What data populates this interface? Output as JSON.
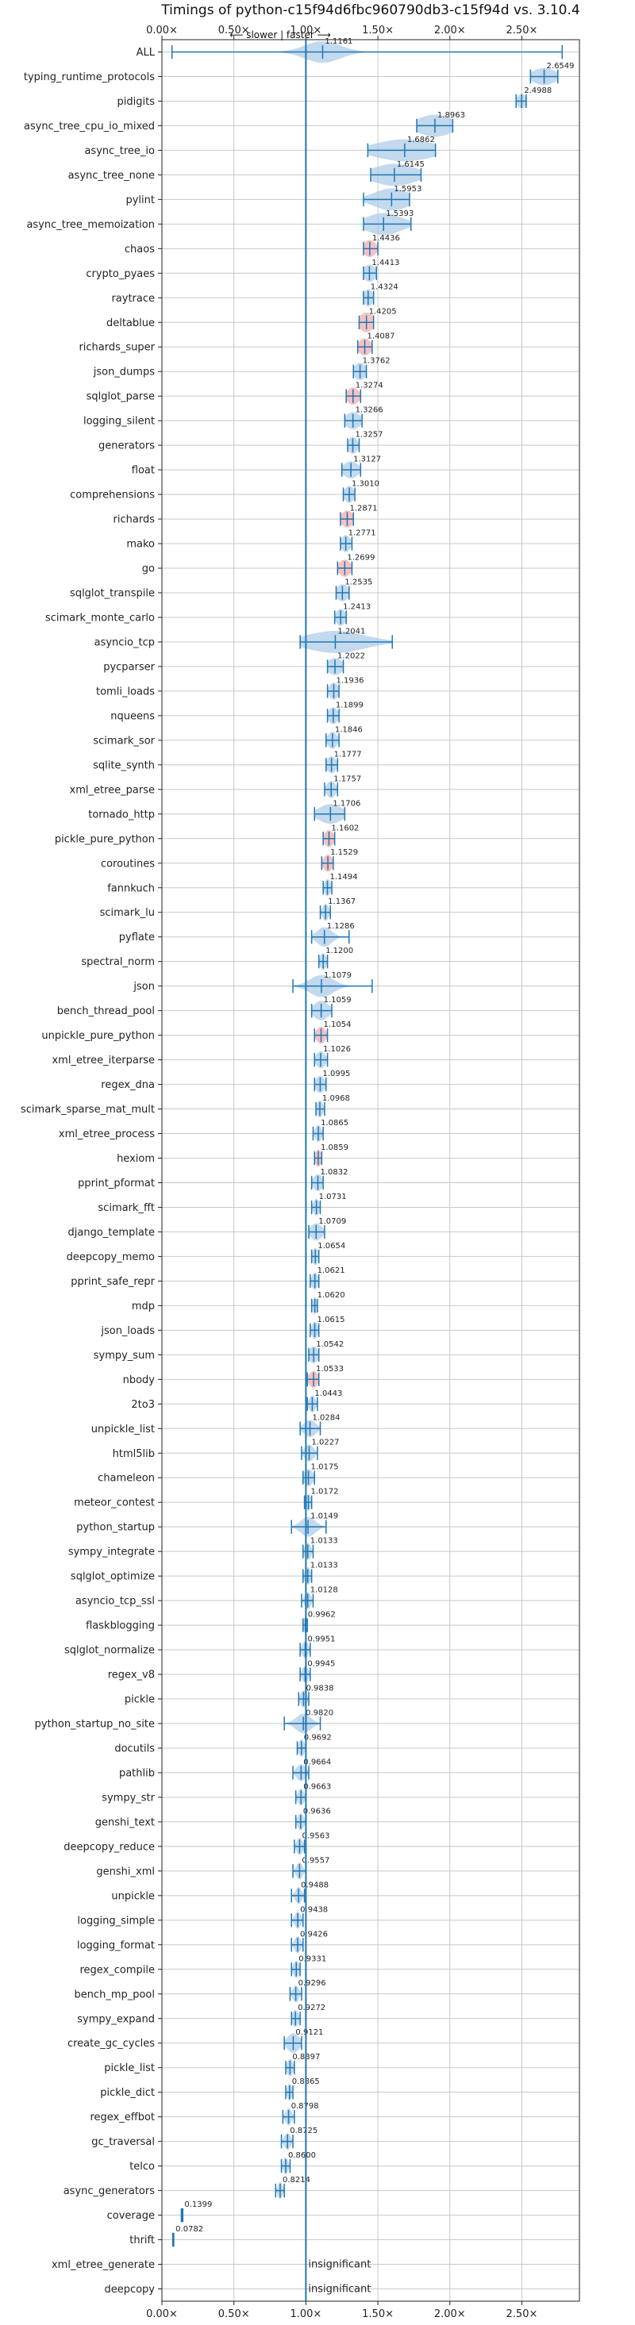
{
  "chart_data": {
    "type": "violin",
    "title": "Timings of python-c15f94d6fbc960790db3-c15f94d vs. 3.10.4",
    "direction_label": "⟵ slower | faster ⟶",
    "insignificant_label": "insignificant",
    "xlim": [
      0,
      2.9
    ],
    "x_ticks": [
      0,
      0.5,
      1.0,
      1.5,
      2.0,
      2.5
    ],
    "x_tick_labels": [
      "0.00×",
      "0.50×",
      "1.00×",
      "1.50×",
      "2.00×",
      "2.50×"
    ],
    "grid": true,
    "colors": {
      "violin": "#a9c9e6",
      "line": "#1f77b4",
      "highlight": "#f4a6a6",
      "grid": "#c8c8c8"
    },
    "benchmarks": [
      {
        "name": "ALL",
        "value": 1.1161,
        "label": "1.1161",
        "lo": 0.07,
        "hi": 2.78,
        "spread": 0.12,
        "height": 0.45
      },
      {
        "name": "typing_runtime_protocols",
        "value": 2.6549,
        "label": "2.6549",
        "lo": 2.56,
        "hi": 2.75,
        "spread": 0.08,
        "height": 0.35
      },
      {
        "name": "pidigits",
        "value": 2.4988,
        "label": "2.4988",
        "lo": 2.46,
        "hi": 2.53,
        "spread": 0.03,
        "height": 0.3
      },
      {
        "name": "async_tree_cpu_io_mixed",
        "value": 1.8963,
        "label": "1.8963",
        "lo": 1.77,
        "hi": 2.02,
        "spread": 0.12,
        "height": 0.45
      },
      {
        "name": "async_tree_io",
        "value": 1.6862,
        "label": "1.6862",
        "lo": 1.43,
        "hi": 1.9,
        "spread": 0.2,
        "height": 0.45
      },
      {
        "name": "async_tree_none",
        "value": 1.6145,
        "label": "1.6145",
        "lo": 1.45,
        "hi": 1.8,
        "spread": 0.15,
        "height": 0.45
      },
      {
        "name": "pylint",
        "value": 1.5953,
        "label": "1.5953",
        "lo": 1.4,
        "hi": 1.72,
        "spread": 0.12,
        "height": 0.45
      },
      {
        "name": "async_tree_memoization",
        "value": 1.5393,
        "label": "1.5393",
        "lo": 1.4,
        "hi": 1.73,
        "spread": 0.12,
        "height": 0.45
      },
      {
        "name": "chaos",
        "value": 1.4436,
        "label": "1.4436",
        "lo": 1.4,
        "hi": 1.5,
        "spread": 0.04,
        "height": 0.35,
        "highlight": true
      },
      {
        "name": "crypto_pyaes",
        "value": 1.4413,
        "label": "1.4413",
        "lo": 1.4,
        "hi": 1.49,
        "spread": 0.04,
        "height": 0.35
      },
      {
        "name": "raytrace",
        "value": 1.4324,
        "label": "1.4324",
        "lo": 1.4,
        "hi": 1.47,
        "spread": 0.03,
        "height": 0.35
      },
      {
        "name": "deltablue",
        "value": 1.4205,
        "label": "1.4205",
        "lo": 1.37,
        "hi": 1.47,
        "spread": 0.05,
        "height": 0.4,
        "highlight": true
      },
      {
        "name": "richards_super",
        "value": 1.4087,
        "label": "1.4087",
        "lo": 1.36,
        "hi": 1.46,
        "spread": 0.04,
        "height": 0.35,
        "highlight": true
      },
      {
        "name": "json_dumps",
        "value": 1.3762,
        "label": "1.3762",
        "lo": 1.33,
        "hi": 1.42,
        "spread": 0.04,
        "height": 0.35
      },
      {
        "name": "sqlglot_parse",
        "value": 1.3274,
        "label": "1.3274",
        "lo": 1.28,
        "hi": 1.38,
        "spread": 0.04,
        "height": 0.35,
        "highlight": true
      },
      {
        "name": "logging_silent",
        "value": 1.3266,
        "label": "1.3266",
        "lo": 1.27,
        "hi": 1.39,
        "spread": 0.05,
        "height": 0.35
      },
      {
        "name": "generators",
        "value": 1.3257,
        "label": "1.3257",
        "lo": 1.29,
        "hi": 1.37,
        "spread": 0.03,
        "height": 0.35
      },
      {
        "name": "float",
        "value": 1.3127,
        "label": "1.3127",
        "lo": 1.25,
        "hi": 1.38,
        "spread": 0.05,
        "height": 0.35
      },
      {
        "name": "comprehensions",
        "value": 1.301,
        "label": "1.3010",
        "lo": 1.26,
        "hi": 1.34,
        "spread": 0.03,
        "height": 0.35
      },
      {
        "name": "richards",
        "value": 1.2871,
        "label": "1.2871",
        "lo": 1.24,
        "hi": 1.33,
        "spread": 0.04,
        "height": 0.35,
        "highlight": true
      },
      {
        "name": "mako",
        "value": 1.2771,
        "label": "1.2771",
        "lo": 1.24,
        "hi": 1.32,
        "spread": 0.03,
        "height": 0.35
      },
      {
        "name": "go",
        "value": 1.2699,
        "label": "1.2699",
        "lo": 1.22,
        "hi": 1.32,
        "spread": 0.04,
        "height": 0.35,
        "highlight": true
      },
      {
        "name": "sqlglot_transpile",
        "value": 1.2535,
        "label": "1.2535",
        "lo": 1.21,
        "hi": 1.3,
        "spread": 0.04,
        "height": 0.35
      },
      {
        "name": "scimark_monte_carlo",
        "value": 1.2413,
        "label": "1.2413",
        "lo": 1.2,
        "hi": 1.28,
        "spread": 0.03,
        "height": 0.35
      },
      {
        "name": "asyncio_tcp",
        "value": 1.2041,
        "label": "1.2041",
        "lo": 0.96,
        "hi": 1.6,
        "spread": 0.2,
        "height": 0.45
      },
      {
        "name": "pycparser",
        "value": 1.2022,
        "label": "1.2022",
        "lo": 1.15,
        "hi": 1.26,
        "spread": 0.05,
        "height": 0.35
      },
      {
        "name": "tomli_loads",
        "value": 1.1936,
        "label": "1.1936",
        "lo": 1.15,
        "hi": 1.23,
        "spread": 0.03,
        "height": 0.35
      },
      {
        "name": "nqueens",
        "value": 1.1899,
        "label": "1.1899",
        "lo": 1.15,
        "hi": 1.23,
        "spread": 0.03,
        "height": 0.35
      },
      {
        "name": "scimark_sor",
        "value": 1.1846,
        "label": "1.1846",
        "lo": 1.14,
        "hi": 1.23,
        "spread": 0.03,
        "height": 0.35
      },
      {
        "name": "sqlite_synth",
        "value": 1.1777,
        "label": "1.1777",
        "lo": 1.14,
        "hi": 1.22,
        "spread": 0.03,
        "height": 0.35
      },
      {
        "name": "xml_etree_parse",
        "value": 1.1757,
        "label": "1.1757",
        "lo": 1.13,
        "hi": 1.22,
        "spread": 0.03,
        "height": 0.35
      },
      {
        "name": "tornado_http",
        "value": 1.1706,
        "label": "1.1706",
        "lo": 1.06,
        "hi": 1.27,
        "spread": 0.08,
        "height": 0.4
      },
      {
        "name": "pickle_pure_python",
        "value": 1.1602,
        "label": "1.1602",
        "lo": 1.12,
        "hi": 1.2,
        "spread": 0.03,
        "height": 0.35,
        "highlight": true
      },
      {
        "name": "coroutines",
        "value": 1.1529,
        "label": "1.1529",
        "lo": 1.11,
        "hi": 1.19,
        "spread": 0.03,
        "height": 0.35,
        "highlight": true
      },
      {
        "name": "fannkuch",
        "value": 1.1494,
        "label": "1.1494",
        "lo": 1.12,
        "hi": 1.18,
        "spread": 0.02,
        "height": 0.35
      },
      {
        "name": "scimark_lu",
        "value": 1.1367,
        "label": "1.1367",
        "lo": 1.1,
        "hi": 1.17,
        "spread": 0.02,
        "height": 0.35
      },
      {
        "name": "pyflate",
        "value": 1.1286,
        "label": "1.1286",
        "lo": 1.04,
        "hi": 1.3,
        "spread": 0.05,
        "height": 0.4
      },
      {
        "name": "spectral_norm",
        "value": 1.12,
        "label": "1.1200",
        "lo": 1.09,
        "hi": 1.15,
        "spread": 0.02,
        "height": 0.35
      },
      {
        "name": "json",
        "value": 1.1079,
        "label": "1.1079",
        "lo": 0.91,
        "hi": 1.46,
        "spread": 0.08,
        "height": 0.45
      },
      {
        "name": "bench_thread_pool",
        "value": 1.1059,
        "label": "1.1059",
        "lo": 1.04,
        "hi": 1.18,
        "spread": 0.05,
        "height": 0.4
      },
      {
        "name": "unpickle_pure_python",
        "value": 1.1054,
        "label": "1.1054",
        "lo": 1.06,
        "hi": 1.15,
        "spread": 0.03,
        "height": 0.35,
        "highlight": true
      },
      {
        "name": "xml_etree_iterparse",
        "value": 1.1026,
        "label": "1.1026",
        "lo": 1.06,
        "hi": 1.15,
        "spread": 0.03,
        "height": 0.35
      },
      {
        "name": "regex_dna",
        "value": 1.0995,
        "label": "1.0995",
        "lo": 1.06,
        "hi": 1.14,
        "spread": 0.03,
        "height": 0.35
      },
      {
        "name": "scimark_sparse_mat_mult",
        "value": 1.0968,
        "label": "1.0968",
        "lo": 1.07,
        "hi": 1.13,
        "spread": 0.02,
        "height": 0.35
      },
      {
        "name": "xml_etree_process",
        "value": 1.0865,
        "label": "1.0865",
        "lo": 1.05,
        "hi": 1.12,
        "spread": 0.02,
        "height": 0.35
      },
      {
        "name": "hexiom",
        "value": 1.0859,
        "label": "1.0859",
        "lo": 1.06,
        "hi": 1.11,
        "spread": 0.02,
        "height": 0.35,
        "highlight": true
      },
      {
        "name": "pprint_pformat",
        "value": 1.0832,
        "label": "1.0832",
        "lo": 1.04,
        "hi": 1.12,
        "spread": 0.03,
        "height": 0.35
      },
      {
        "name": "scimark_fft",
        "value": 1.0731,
        "label": "1.0731",
        "lo": 1.04,
        "hi": 1.1,
        "spread": 0.02,
        "height": 0.35
      },
      {
        "name": "django_template",
        "value": 1.0709,
        "label": "1.0709",
        "lo": 1.02,
        "hi": 1.13,
        "spread": 0.04,
        "height": 0.35
      },
      {
        "name": "deepcopy_memo",
        "value": 1.0654,
        "label": "1.0654",
        "lo": 1.04,
        "hi": 1.09,
        "spread": 0.02,
        "height": 0.35
      },
      {
        "name": "pprint_safe_repr",
        "value": 1.0621,
        "label": "1.0621",
        "lo": 1.03,
        "hi": 1.09,
        "spread": 0.02,
        "height": 0.35
      },
      {
        "name": "mdp",
        "value": 1.062,
        "label": "1.0620",
        "lo": 1.04,
        "hi": 1.08,
        "spread": 0.015,
        "height": 0.35
      },
      {
        "name": "json_loads",
        "value": 1.0615,
        "label": "1.0615",
        "lo": 1.03,
        "hi": 1.09,
        "spread": 0.02,
        "height": 0.35
      },
      {
        "name": "sympy_sum",
        "value": 1.0542,
        "label": "1.0542",
        "lo": 1.02,
        "hi": 1.09,
        "spread": 0.03,
        "height": 0.35
      },
      {
        "name": "nbody",
        "value": 1.0533,
        "label": "1.0533",
        "lo": 1.01,
        "hi": 1.09,
        "spread": 0.03,
        "height": 0.35,
        "highlight": true
      },
      {
        "name": "2to3",
        "value": 1.0443,
        "label": "1.0443",
        "lo": 1.01,
        "hi": 1.08,
        "spread": 0.02,
        "height": 0.35
      },
      {
        "name": "unpickle_list",
        "value": 1.0284,
        "label": "1.0284",
        "lo": 0.96,
        "hi": 1.1,
        "spread": 0.04,
        "height": 0.35
      },
      {
        "name": "html5lib",
        "value": 1.0227,
        "label": "1.0227",
        "lo": 0.97,
        "hi": 1.08,
        "spread": 0.03,
        "height": 0.35
      },
      {
        "name": "chameleon",
        "value": 1.0175,
        "label": "1.0175",
        "lo": 0.98,
        "hi": 1.06,
        "spread": 0.03,
        "height": 0.35
      },
      {
        "name": "meteor_contest",
        "value": 1.0172,
        "label": "1.0172",
        "lo": 0.99,
        "hi": 1.04,
        "spread": 0.015,
        "height": 0.35
      },
      {
        "name": "python_startup",
        "value": 1.0149,
        "label": "1.0149",
        "lo": 0.9,
        "hi": 1.14,
        "spread": 0.05,
        "height": 0.4
      },
      {
        "name": "sympy_integrate",
        "value": 1.0133,
        "label": "1.0133",
        "lo": 0.98,
        "hi": 1.05,
        "spread": 0.02,
        "height": 0.35
      },
      {
        "name": "sqlglot_optimize",
        "value": 1.0133,
        "label": "1.0133",
        "lo": 0.98,
        "hi": 1.04,
        "spread": 0.02,
        "height": 0.35
      },
      {
        "name": "asyncio_tcp_ssl",
        "value": 1.0128,
        "label": "1.0128",
        "lo": 0.97,
        "hi": 1.05,
        "spread": 0.02,
        "height": 0.35
      },
      {
        "name": "flaskblogging",
        "value": 0.9962,
        "label": "0.9962",
        "lo": 0.98,
        "hi": 1.01,
        "spread": 0.01,
        "height": 0.35
      },
      {
        "name": "sqlglot_normalize",
        "value": 0.9951,
        "label": "0.9951",
        "lo": 0.96,
        "hi": 1.03,
        "spread": 0.02,
        "height": 0.35
      },
      {
        "name": "regex_v8",
        "value": 0.9945,
        "label": "0.9945",
        "lo": 0.96,
        "hi": 1.03,
        "spread": 0.02,
        "height": 0.35
      },
      {
        "name": "pickle",
        "value": 0.9838,
        "label": "0.9838",
        "lo": 0.95,
        "hi": 1.02,
        "spread": 0.02,
        "height": 0.35
      },
      {
        "name": "python_startup_no_site",
        "value": 0.982,
        "label": "0.9820",
        "lo": 0.85,
        "hi": 1.1,
        "spread": 0.05,
        "height": 0.4
      },
      {
        "name": "docutils",
        "value": 0.9692,
        "label": "0.9692",
        "lo": 0.94,
        "hi": 1.0,
        "spread": 0.02,
        "height": 0.35
      },
      {
        "name": "pathlib",
        "value": 0.9664,
        "label": "0.9664",
        "lo": 0.91,
        "hi": 1.02,
        "spread": 0.03,
        "height": 0.35
      },
      {
        "name": "sympy_str",
        "value": 0.9663,
        "label": "0.9663",
        "lo": 0.93,
        "hi": 1.0,
        "spread": 0.02,
        "height": 0.35
      },
      {
        "name": "genshi_text",
        "value": 0.9636,
        "label": "0.9636",
        "lo": 0.93,
        "hi": 1.0,
        "spread": 0.02,
        "height": 0.35
      },
      {
        "name": "deepcopy_reduce",
        "value": 0.9563,
        "label": "0.9563",
        "lo": 0.92,
        "hi": 0.99,
        "spread": 0.02,
        "height": 0.35
      },
      {
        "name": "genshi_xml",
        "value": 0.9557,
        "label": "0.9557",
        "lo": 0.91,
        "hi": 1.0,
        "spread": 0.02,
        "height": 0.35
      },
      {
        "name": "unpickle",
        "value": 0.9488,
        "label": "0.9488",
        "lo": 0.9,
        "hi": 0.99,
        "spread": 0.02,
        "height": 0.35
      },
      {
        "name": "logging_simple",
        "value": 0.9438,
        "label": "0.9438",
        "lo": 0.9,
        "hi": 0.98,
        "spread": 0.02,
        "height": 0.35
      },
      {
        "name": "logging_format",
        "value": 0.9426,
        "label": "0.9426",
        "lo": 0.9,
        "hi": 0.98,
        "spread": 0.02,
        "height": 0.35
      },
      {
        "name": "regex_compile",
        "value": 0.9331,
        "label": "0.9331",
        "lo": 0.9,
        "hi": 0.96,
        "spread": 0.02,
        "height": 0.35
      },
      {
        "name": "bench_mp_pool",
        "value": 0.9296,
        "label": "0.9296",
        "lo": 0.89,
        "hi": 0.97,
        "spread": 0.02,
        "height": 0.35
      },
      {
        "name": "sympy_expand",
        "value": 0.9272,
        "label": "0.9272",
        "lo": 0.9,
        "hi": 0.96,
        "spread": 0.02,
        "height": 0.35
      },
      {
        "name": "create_gc_cycles",
        "value": 0.9121,
        "label": "0.9121",
        "lo": 0.85,
        "hi": 0.97,
        "spread": 0.04,
        "height": 0.4
      },
      {
        "name": "pickle_list",
        "value": 0.8897,
        "label": "0.8897",
        "lo": 0.86,
        "hi": 0.92,
        "spread": 0.02,
        "height": 0.35
      },
      {
        "name": "pickle_dict",
        "value": 0.8865,
        "label": "0.8865",
        "lo": 0.86,
        "hi": 0.91,
        "spread": 0.015,
        "height": 0.35
      },
      {
        "name": "regex_effbot",
        "value": 0.8798,
        "label": "0.8798",
        "lo": 0.84,
        "hi": 0.92,
        "spread": 0.02,
        "height": 0.35
      },
      {
        "name": "gc_traversal",
        "value": 0.8725,
        "label": "0.8725",
        "lo": 0.83,
        "hi": 0.91,
        "spread": 0.02,
        "height": 0.35
      },
      {
        "name": "telco",
        "value": 0.86,
        "label": "0.8600",
        "lo": 0.83,
        "hi": 0.89,
        "spread": 0.015,
        "height": 0.35
      },
      {
        "name": "async_generators",
        "value": 0.8214,
        "label": "0.8214",
        "lo": 0.79,
        "hi": 0.85,
        "spread": 0.015,
        "height": 0.35
      },
      {
        "name": "coverage",
        "value": 0.1399,
        "label": "0.1399",
        "lo": 0.135,
        "hi": 0.145,
        "spread": 0.004,
        "height": 0.3
      },
      {
        "name": "thrift",
        "value": 0.0782,
        "label": "0.0782",
        "lo": 0.075,
        "hi": 0.082,
        "spread": 0.003,
        "height": 0.3
      },
      {
        "name": "xml_etree_generate",
        "insignificant": true
      },
      {
        "name": "deepcopy",
        "insignificant": true
      }
    ]
  }
}
